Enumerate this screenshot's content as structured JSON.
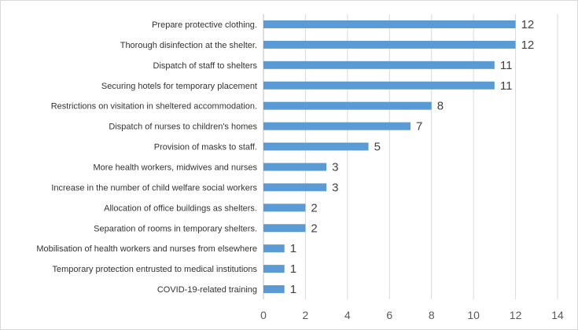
{
  "chart_data": {
    "type": "bar",
    "orientation": "horizontal",
    "categories": [
      "Prepare protective clothing.",
      "Thorough disinfection at the shelter.",
      "Dispatch of staff to shelters",
      "Securing hotels for temporary placement",
      "Restrictions on visitation in sheltered accommodation.",
      "Dispatch of nurses to children's homes",
      "Provision of masks to staff.",
      "More health workers, midwives and nurses",
      "Increase in the number of child welfare social workers",
      "Allocation of office buildings as shelters.",
      "Separation of rooms in temporary shelters.",
      "Mobilisation of health workers and nurses from elsewhere",
      "Temporary protection entrusted to medical institutions",
      "COVID-19-related training"
    ],
    "values": [
      12,
      12,
      11,
      11,
      8,
      7,
      5,
      3,
      3,
      2,
      2,
      1,
      1,
      1
    ],
    "title": "",
    "xlabel": "",
    "ylabel": "",
    "xlim": [
      0,
      14
    ],
    "xticks": [
      "0",
      "2",
      "4",
      "6",
      "8",
      "10",
      "12",
      "14"
    ],
    "grid": true,
    "legend": "none",
    "bar_color": "#5b9bd5",
    "data_labels": true
  }
}
